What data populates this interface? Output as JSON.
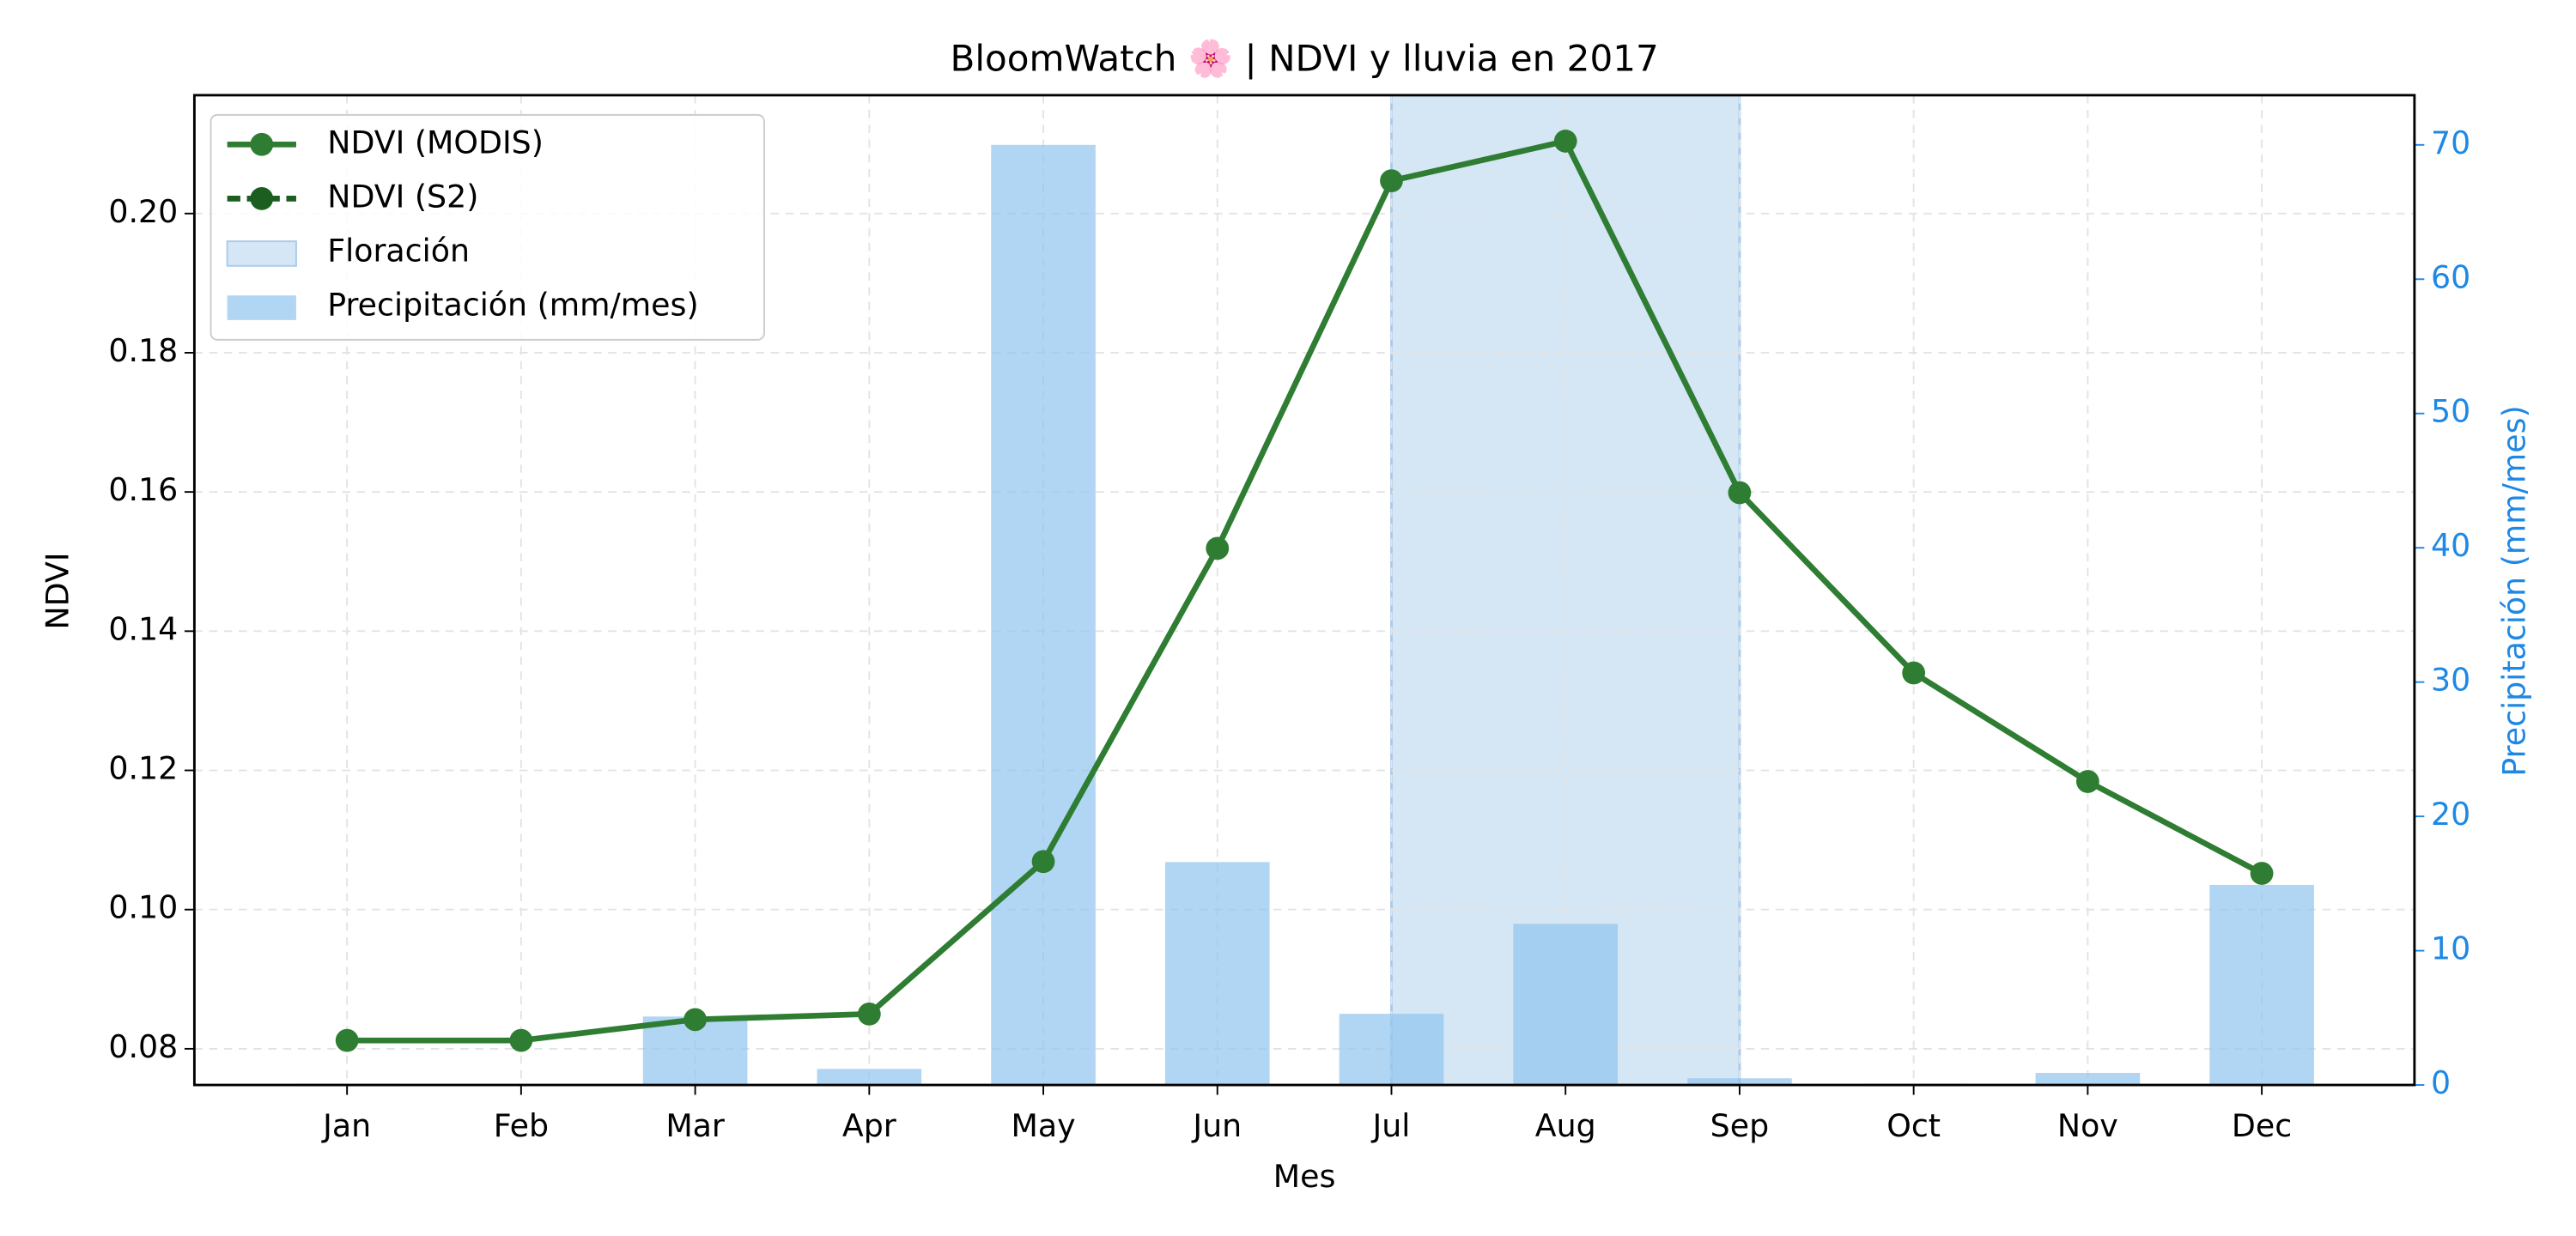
{
  "chart_data": {
    "type": "line",
    "title": "BloomWatch 🌸 | NDVI y lluvia en 2017",
    "xlabel": "Mes",
    "ylabel": "NDVI",
    "y2label": "Precipitación (mm/mes)",
    "categories": [
      "Jan",
      "Feb",
      "Mar",
      "Apr",
      "May",
      "Jun",
      "Jul",
      "Aug",
      "Sep",
      "Oct",
      "Nov",
      "Dec"
    ],
    "ylim": [
      0.0748,
      0.217
    ],
    "yticks": [
      {
        "value": 0.08,
        "label": "0.08"
      },
      {
        "value": 0.1,
        "label": "0.10"
      },
      {
        "value": 0.12,
        "label": "0.12"
      },
      {
        "value": 0.14,
        "label": "0.14"
      },
      {
        "value": 0.16,
        "label": "0.16"
      },
      {
        "value": 0.18,
        "label": "0.18"
      },
      {
        "value": 0.2,
        "label": "0.20"
      }
    ],
    "y2lim": [
      0,
      73.7
    ],
    "y2ticks": [
      0,
      10,
      20,
      30,
      40,
      50,
      60,
      70
    ],
    "grid": true,
    "legend": "upper left",
    "bloom_span": {
      "name": "Floración",
      "start": "Jul",
      "end": "Sep",
      "color": "#d5e6f5"
    },
    "series": [
      {
        "name": "NDVI (MODIS)",
        "type": "line",
        "color": "#2e7d32",
        "values": [
          0.0812,
          0.0812,
          0.0842,
          0.085,
          0.1069,
          0.1519,
          0.2047,
          0.2104,
          0.1599,
          0.134,
          0.1184,
          0.1052
        ]
      },
      {
        "name": "NDVI (S2)",
        "type": "line",
        "dashed": true,
        "color": "#1b5e20",
        "values": [
          null,
          null,
          null,
          null,
          null,
          null,
          null,
          null,
          null,
          null,
          null,
          null
        ]
      },
      {
        "name": "Precipitación (mm/mes)",
        "type": "bar",
        "axis": "y2",
        "color": "#90c4f0",
        "values": [
          0.1,
          0,
          5.1,
          1.2,
          70,
          16.6,
          5.3,
          12,
          0.5,
          0.1,
          0.9,
          14.9
        ]
      }
    ]
  }
}
